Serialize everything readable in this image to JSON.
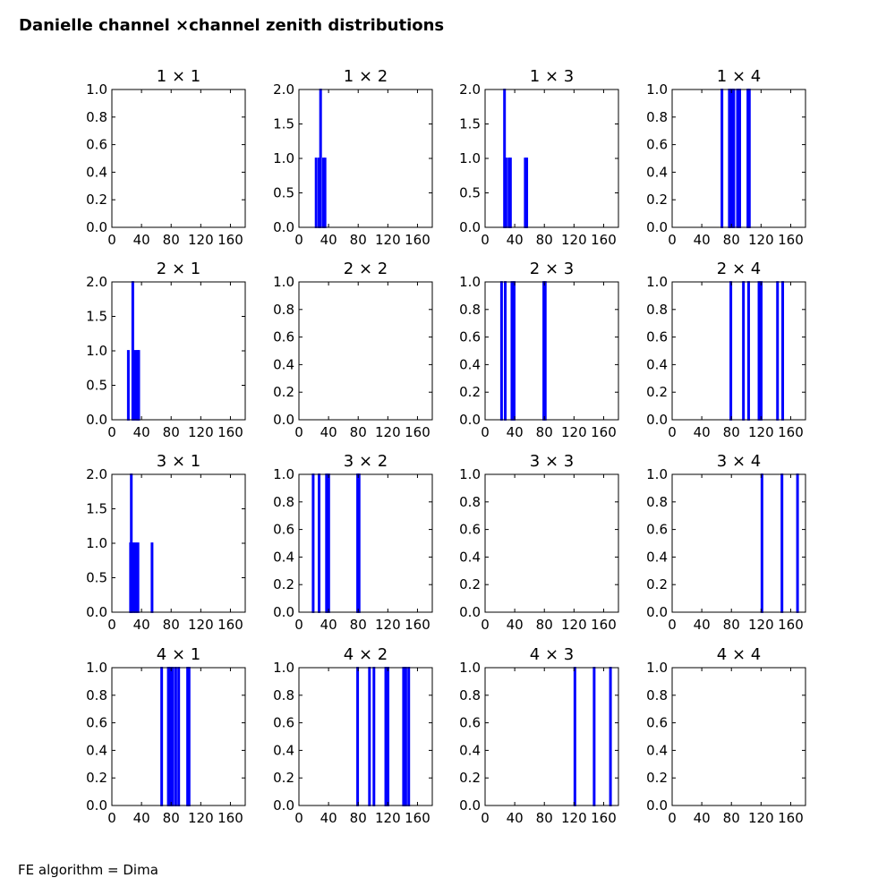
{
  "figure": {
    "title": "Danielle channel ×channel zenith distributions",
    "footer": "FE algorithm = Dima"
  },
  "chart_data": [
    {
      "type": "bar",
      "title": "1 × 1",
      "xlim": [
        0,
        180
      ],
      "ylim": [
        0,
        1.0
      ],
      "xticks": [
        "0",
        "40",
        "80",
        "120",
        "160"
      ],
      "yticks": [
        "0.0",
        "0.2",
        "0.4",
        "0.6",
        "0.8",
        "1.0"
      ],
      "bars": []
    },
    {
      "type": "bar",
      "title": "1 × 2",
      "xlim": [
        0,
        180
      ],
      "ylim": [
        0,
        2.0
      ],
      "xticks": [
        "0",
        "40",
        "80",
        "120",
        "160"
      ],
      "yticks": [
        "0.0",
        "0.5",
        "1.0",
        "1.5",
        "2.0"
      ],
      "bars": [
        {
          "x": 23,
          "y": 1
        },
        {
          "x": 27,
          "y": 1
        },
        {
          "x": 29,
          "y": 2
        },
        {
          "x": 33,
          "y": 1
        },
        {
          "x": 35,
          "y": 1
        }
      ]
    },
    {
      "type": "bar",
      "title": "1 × 3",
      "xlim": [
        0,
        180
      ],
      "ylim": [
        0,
        2.0
      ],
      "xticks": [
        "0",
        "40",
        "80",
        "120",
        "160"
      ],
      "yticks": [
        "0.0",
        "0.5",
        "1.0",
        "1.5",
        "2.0"
      ],
      "bars": [
        {
          "x": 26,
          "y": 2
        },
        {
          "x": 28,
          "y": 1
        },
        {
          "x": 32,
          "y": 1
        },
        {
          "x": 34,
          "y": 1
        },
        {
          "x": 54,
          "y": 1
        },
        {
          "x": 56,
          "y": 1
        }
      ]
    },
    {
      "type": "bar",
      "title": "1 × 4",
      "xlim": [
        0,
        180
      ],
      "ylim": [
        0,
        1.0
      ],
      "xticks": [
        "0",
        "40",
        "80",
        "120",
        "160"
      ],
      "yticks": [
        "0.0",
        "0.2",
        "0.4",
        "0.6",
        "0.8",
        "1.0"
      ],
      "bars": [
        {
          "x": 67,
          "y": 1
        },
        {
          "x": 77,
          "y": 1
        },
        {
          "x": 80,
          "y": 1
        },
        {
          "x": 83,
          "y": 1
        },
        {
          "x": 88,
          "y": 1
        },
        {
          "x": 91,
          "y": 1
        },
        {
          "x": 102,
          "y": 1
        },
        {
          "x": 104,
          "y": 1
        }
      ]
    },
    {
      "type": "bar",
      "title": "2 × 1",
      "xlim": [
        0,
        180
      ],
      "ylim": [
        0,
        2.0
      ],
      "xticks": [
        "0",
        "40",
        "80",
        "120",
        "160"
      ],
      "yticks": [
        "0.0",
        "0.5",
        "1.0",
        "1.5",
        "2.0"
      ],
      "bars": [
        {
          "x": 22,
          "y": 1
        },
        {
          "x": 28,
          "y": 2
        },
        {
          "x": 31,
          "y": 1
        },
        {
          "x": 34,
          "y": 1
        },
        {
          "x": 36,
          "y": 1
        }
      ]
    },
    {
      "type": "bar",
      "title": "2 × 2",
      "xlim": [
        0,
        180
      ],
      "ylim": [
        0,
        1.0
      ],
      "xticks": [
        "0",
        "40",
        "80",
        "120",
        "160"
      ],
      "yticks": [
        "0.0",
        "0.2",
        "0.4",
        "0.6",
        "0.8",
        "1.0"
      ],
      "bars": []
    },
    {
      "type": "bar",
      "title": "2 × 3",
      "xlim": [
        0,
        180
      ],
      "ylim": [
        0,
        1.0
      ],
      "xticks": [
        "0",
        "40",
        "80",
        "120",
        "160"
      ],
      "yticks": [
        "0.0",
        "0.2",
        "0.4",
        "0.6",
        "0.8",
        "1.0"
      ],
      "bars": [
        {
          "x": 22,
          "y": 1
        },
        {
          "x": 27,
          "y": 1
        },
        {
          "x": 36,
          "y": 1
        },
        {
          "x": 39,
          "y": 1
        },
        {
          "x": 79,
          "y": 1
        },
        {
          "x": 81,
          "y": 1
        }
      ]
    },
    {
      "type": "bar",
      "title": "2 × 4",
      "xlim": [
        0,
        180
      ],
      "ylim": [
        0,
        1.0
      ],
      "xticks": [
        "0",
        "40",
        "80",
        "120",
        "160"
      ],
      "yticks": [
        "0.0",
        "0.2",
        "0.4",
        "0.6",
        "0.8",
        "1.0"
      ],
      "bars": [
        {
          "x": 79,
          "y": 1
        },
        {
          "x": 96,
          "y": 1
        },
        {
          "x": 103,
          "y": 1
        },
        {
          "x": 117,
          "y": 1
        },
        {
          "x": 120,
          "y": 1
        },
        {
          "x": 142,
          "y": 1
        },
        {
          "x": 149,
          "y": 1
        }
      ]
    },
    {
      "type": "bar",
      "title": "3 × 1",
      "xlim": [
        0,
        180
      ],
      "ylim": [
        0,
        2.0
      ],
      "xticks": [
        "0",
        "40",
        "80",
        "120",
        "160"
      ],
      "yticks": [
        "0.0",
        "0.5",
        "1.0",
        "1.5",
        "2.0"
      ],
      "bars": [
        {
          "x": 25,
          "y": 1
        },
        {
          "x": 26,
          "y": 2
        },
        {
          "x": 29,
          "y": 1
        },
        {
          "x": 32,
          "y": 1
        },
        {
          "x": 35,
          "y": 1
        },
        {
          "x": 54,
          "y": 1
        }
      ]
    },
    {
      "type": "bar",
      "title": "3 × 2",
      "xlim": [
        0,
        180
      ],
      "ylim": [
        0,
        1.0
      ],
      "xticks": [
        "0",
        "40",
        "80",
        "120",
        "160"
      ],
      "yticks": [
        "0.0",
        "0.2",
        "0.4",
        "0.6",
        "0.8",
        "1.0"
      ],
      "bars": [
        {
          "x": 19,
          "y": 1
        },
        {
          "x": 27,
          "y": 1
        },
        {
          "x": 37,
          "y": 1
        },
        {
          "x": 40,
          "y": 1
        },
        {
          "x": 79,
          "y": 1
        },
        {
          "x": 81,
          "y": 1
        }
      ]
    },
    {
      "type": "bar",
      "title": "3 × 3",
      "xlim": [
        0,
        180
      ],
      "ylim": [
        0,
        1.0
      ],
      "xticks": [
        "0",
        "40",
        "80",
        "120",
        "160"
      ],
      "yticks": [
        "0.0",
        "0.2",
        "0.4",
        "0.6",
        "0.8",
        "1.0"
      ],
      "bars": []
    },
    {
      "type": "bar",
      "title": "3 × 4",
      "xlim": [
        0,
        180
      ],
      "ylim": [
        0,
        1.0
      ],
      "xticks": [
        "0",
        "40",
        "80",
        "120",
        "160"
      ],
      "yticks": [
        "0.0",
        "0.2",
        "0.4",
        "0.6",
        "0.8",
        "1.0"
      ],
      "bars": [
        {
          "x": 121,
          "y": 1
        },
        {
          "x": 148,
          "y": 1
        },
        {
          "x": 169,
          "y": 1
        }
      ]
    },
    {
      "type": "bar",
      "title": "4 × 1",
      "xlim": [
        0,
        180
      ],
      "ylim": [
        0,
        1.0
      ],
      "xticks": [
        "0",
        "40",
        "80",
        "120",
        "160"
      ],
      "yticks": [
        "0.0",
        "0.2",
        "0.4",
        "0.6",
        "0.8",
        "1.0"
      ],
      "bars": [
        {
          "x": 67,
          "y": 1
        },
        {
          "x": 76,
          "y": 1
        },
        {
          "x": 79,
          "y": 1
        },
        {
          "x": 82,
          "y": 1
        },
        {
          "x": 86,
          "y": 1
        },
        {
          "x": 90,
          "y": 1
        },
        {
          "x": 102,
          "y": 1
        },
        {
          "x": 104,
          "y": 1
        }
      ]
    },
    {
      "type": "bar",
      "title": "4 × 2",
      "xlim": [
        0,
        180
      ],
      "ylim": [
        0,
        1.0
      ],
      "xticks": [
        "0",
        "40",
        "80",
        "120",
        "160"
      ],
      "yticks": [
        "0.0",
        "0.2",
        "0.4",
        "0.6",
        "0.8",
        "1.0"
      ],
      "bars": [
        {
          "x": 79,
          "y": 1
        },
        {
          "x": 95,
          "y": 1
        },
        {
          "x": 101,
          "y": 1
        },
        {
          "x": 117,
          "y": 1
        },
        {
          "x": 120,
          "y": 1
        },
        {
          "x": 141,
          "y": 1
        },
        {
          "x": 144,
          "y": 1
        },
        {
          "x": 148,
          "y": 1
        }
      ]
    },
    {
      "type": "bar",
      "title": "4 × 3",
      "xlim": [
        0,
        180
      ],
      "ylim": [
        0,
        1.0
      ],
      "xticks": [
        "0",
        "40",
        "80",
        "120",
        "160"
      ],
      "yticks": [
        "0.0",
        "0.2",
        "0.4",
        "0.6",
        "0.8",
        "1.0"
      ],
      "bars": [
        {
          "x": 121,
          "y": 1
        },
        {
          "x": 147,
          "y": 1
        },
        {
          "x": 169,
          "y": 1
        }
      ]
    },
    {
      "type": "bar",
      "title": "4 × 4",
      "xlim": [
        0,
        180
      ],
      "ylim": [
        0,
        1.0
      ],
      "xticks": [
        "0",
        "40",
        "80",
        "120",
        "160"
      ],
      "yticks": [
        "0.0",
        "0.2",
        "0.4",
        "0.6",
        "0.8",
        "1.0"
      ],
      "bars": []
    }
  ],
  "colors": {
    "bar": "#0000ff",
    "axis": "#000000"
  }
}
